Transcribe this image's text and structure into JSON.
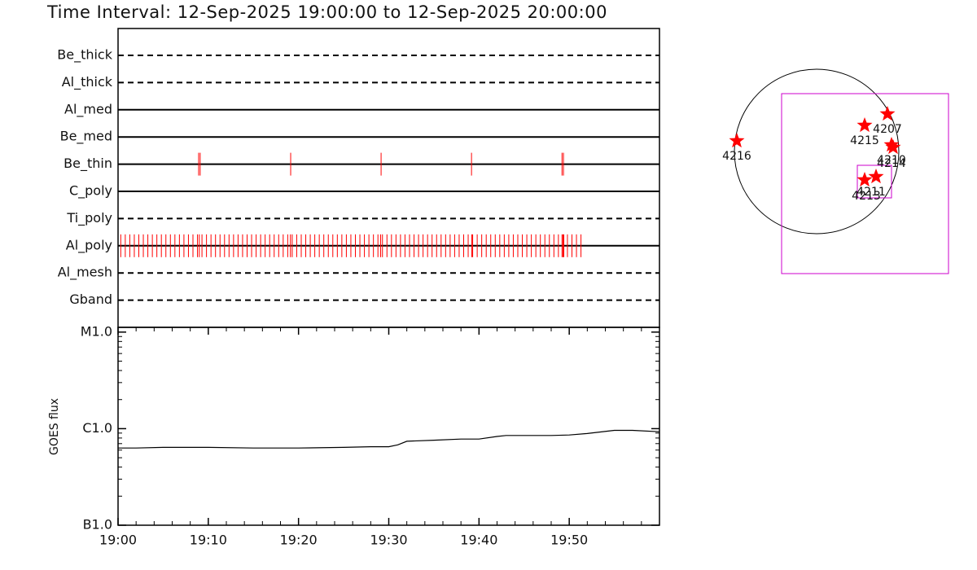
{
  "chart_data": [
    {
      "type": "timeline",
      "title": "Time Interval: 12-Sep-2025 19:00:00 to 12-Sep-2025 20:00:00",
      "xlim": [
        0,
        60
      ],
      "color": "#ff0000",
      "rows": [
        {
          "name": "Be_thick",
          "line_style": "dashed",
          "times": []
        },
        {
          "name": "Al_thick",
          "line_style": "dashed",
          "times": []
        },
        {
          "name": "Al_med",
          "line_style": "solid",
          "times": []
        },
        {
          "name": "Be_med",
          "line_style": "solid",
          "times": []
        },
        {
          "name": "Be_thin",
          "line_style": "solid",
          "times": [
            8.93,
            9.1,
            19.13,
            29.15,
            39.17,
            49.2,
            49.36
          ]
        },
        {
          "name": "C_poly",
          "line_style": "solid",
          "times": []
        },
        {
          "name": "Ti_poly",
          "line_style": "dashed",
          "times": []
        },
        {
          "name": "Al_poly",
          "line_style": "solid",
          "times": [
            0.3,
            0.8,
            1.3,
            1.8,
            2.3,
            2.8,
            3.3,
            3.8,
            4.3,
            4.8,
            5.3,
            5.8,
            6.3,
            6.8,
            7.3,
            7.8,
            8.3,
            8.8,
            9.0,
            9.3,
            9.8,
            10.3,
            10.8,
            11.3,
            11.8,
            12.3,
            12.8,
            13.3,
            13.8,
            14.3,
            14.8,
            15.3,
            15.8,
            16.3,
            16.8,
            17.3,
            17.8,
            18.3,
            18.8,
            19.1,
            19.3,
            19.8,
            20.3,
            20.8,
            21.3,
            21.8,
            22.3,
            22.8,
            23.3,
            23.8,
            24.3,
            24.8,
            25.3,
            25.8,
            26.3,
            26.8,
            27.3,
            27.8,
            28.3,
            28.8,
            29.1,
            29.3,
            29.8,
            30.3,
            30.8,
            31.3,
            31.8,
            32.3,
            32.8,
            33.3,
            33.8,
            34.3,
            34.8,
            35.3,
            35.8,
            36.3,
            36.8,
            37.3,
            37.8,
            38.3,
            38.8,
            39.2,
            39.3,
            39.8,
            40.3,
            40.8,
            41.3,
            41.8,
            42.3,
            42.8,
            43.3,
            43.8,
            44.3,
            44.8,
            45.3,
            45.8,
            46.3,
            46.8,
            47.3,
            47.8,
            48.3,
            48.8,
            49.2,
            49.3,
            49.4,
            49.8,
            50.3,
            50.8,
            51.3
          ]
        },
        {
          "name": "Al_mesh",
          "line_style": "dashed",
          "times": []
        },
        {
          "name": "Gband",
          "line_style": "dashed",
          "times": []
        }
      ]
    },
    {
      "type": "line",
      "y_label": "GOES flux",
      "log_scale": true,
      "color": "#000000",
      "xlim": [
        0,
        60
      ],
      "xticks": [
        {
          "value": 0,
          "label": "19:00"
        },
        {
          "value": 10,
          "label": "19:10"
        },
        {
          "value": 20,
          "label": "19:20"
        },
        {
          "value": 30,
          "label": "19:30"
        },
        {
          "value": 40,
          "label": "19:40"
        },
        {
          "value": 50,
          "label": "19:50"
        }
      ],
      "ylim": [
        1e-07,
        1.12e-05
      ],
      "yticks": [
        {
          "value": 1e-05,
          "label": "M1.0"
        },
        {
          "value": 1e-06,
          "label": "C1.0"
        },
        {
          "value": 1e-07,
          "label": "B1.0"
        }
      ],
      "x": [
        0,
        2,
        5,
        10,
        15,
        20,
        25,
        28,
        30,
        31,
        32,
        35,
        38,
        40,
        42,
        43,
        45,
        48,
        50,
        52,
        55,
        57,
        60
      ],
      "values": [
        6.3e-07,
        6.3e-07,
        6.4e-07,
        6.4e-07,
        6.3e-07,
        6.3e-07,
        6.4e-07,
        6.5e-07,
        6.5e-07,
        6.8e-07,
        7.4e-07,
        7.6e-07,
        7.8e-07,
        7.8e-07,
        8.3e-07,
        8.5e-07,
        8.5e-07,
        8.5e-07,
        8.6e-07,
        8.9e-07,
        9.6e-07,
        9.6e-07,
        9.3e-07
      ]
    }
  ],
  "map": {
    "star_color": "#ff0000",
    "box_color": "#cc00cc",
    "regions": [
      {
        "label": "4216"
      },
      {
        "label": "4215"
      },
      {
        "label": "4207"
      },
      {
        "label": "4210"
      },
      {
        "label": "4214"
      },
      {
        "label": "4211"
      },
      {
        "label": "4213"
      }
    ]
  }
}
